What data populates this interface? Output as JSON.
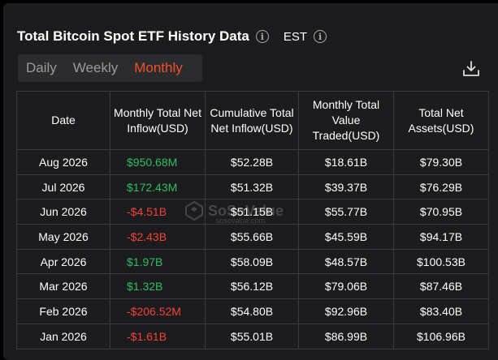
{
  "header": {
    "title": "Total Bitcoin Spot ETF History Data",
    "timezone": "EST",
    "info_icon": "info-icon"
  },
  "tabs": [
    {
      "label": "Daily",
      "active": false
    },
    {
      "label": "Weekly",
      "active": false
    },
    {
      "label": "Monthly",
      "active": true
    }
  ],
  "toolbar": {
    "download_icon": "download-icon"
  },
  "table": {
    "columns": [
      "Date",
      "Monthly Total Net Inflow(USD)",
      "Cumulative Total Net Inflow(USD)",
      "Monthly Total Value Traded(USD)",
      "Total Net Assets(USD)"
    ],
    "rows": [
      {
        "date": "Aug 2026",
        "inflow": "$950.68M",
        "cumulative": "$52.28B",
        "traded": "$18.61B",
        "assets": "$79.30B",
        "sign": "pos"
      },
      {
        "date": "Jul 2026",
        "inflow": "$172.43M",
        "cumulative": "$51.32B",
        "traded": "$39.37B",
        "assets": "$76.29B",
        "sign": "pos"
      },
      {
        "date": "Jun 2026",
        "inflow": "-$4.51B",
        "cumulative": "$51.15B",
        "traded": "$55.77B",
        "assets": "$70.95B",
        "sign": "neg"
      },
      {
        "date": "May 2026",
        "inflow": "-$2.43B",
        "cumulative": "$55.66B",
        "traded": "$45.59B",
        "assets": "$94.17B",
        "sign": "neg"
      },
      {
        "date": "Apr 2026",
        "inflow": "$1.97B",
        "cumulative": "$58.09B",
        "traded": "$48.57B",
        "assets": "$100.53B",
        "sign": "pos"
      },
      {
        "date": "Mar 2026",
        "inflow": "$1.32B",
        "cumulative": "$56.12B",
        "traded": "$79.06B",
        "assets": "$87.46B",
        "sign": "pos"
      },
      {
        "date": "Feb 2026",
        "inflow": "-$206.52M",
        "cumulative": "$54.80B",
        "traded": "$92.96B",
        "assets": "$83.40B",
        "sign": "neg"
      },
      {
        "date": "Jan 2026",
        "inflow": "-$1.61B",
        "cumulative": "$55.01B",
        "traded": "$86.99B",
        "assets": "$106.96B",
        "sign": "neg"
      }
    ]
  },
  "watermark": {
    "text": "SoSoValue",
    "sub": "sosovalue.com"
  },
  "colors": {
    "positive": "#2ebd62",
    "negative": "#f0443a",
    "accent": "#f0502e",
    "panel": "#1c1c1e"
  }
}
